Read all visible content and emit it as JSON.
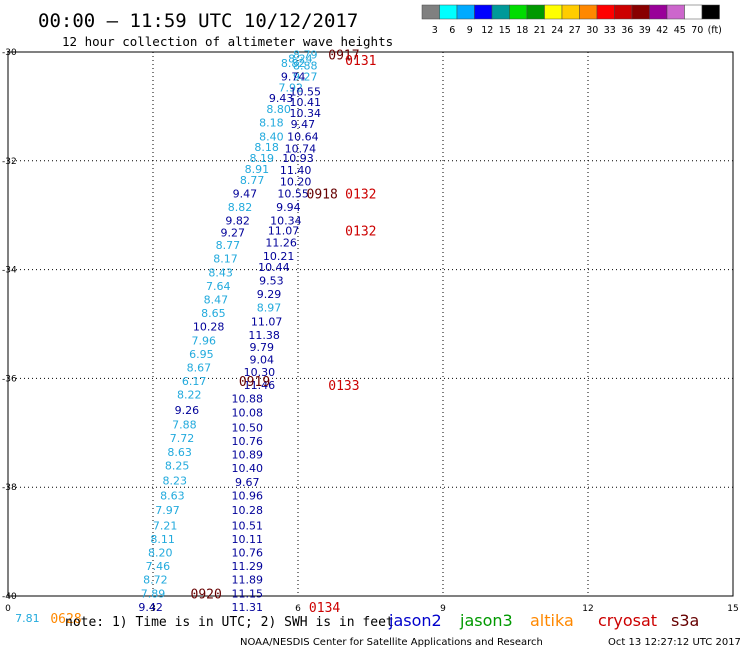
{
  "header": {
    "title": "00:00 – 11:59 UTC 10/12/2017",
    "subtitle": "12 hour collection of altimeter wave heights"
  },
  "scale_bar": {
    "colors": [
      "#808080",
      "#00ffff",
      "#00aaff",
      "#0000ff",
      "#009999",
      "#00dd00",
      "#009900",
      "#ffff00",
      "#ffcc00",
      "#ff8800",
      "#ff0000",
      "#cc0000",
      "#880000",
      "#990099",
      "#cc66cc",
      "#ffffff",
      "#000000"
    ],
    "labels": [
      "3",
      "6",
      "9",
      "12",
      "15",
      "18",
      "21",
      "24",
      "27",
      "30",
      "33",
      "36",
      "39",
      "42",
      "45",
      "70",
      "(ft)"
    ]
  },
  "footer": {
    "note": "note: 1) Time is in UTC; 2) SWH is in feet",
    "legend": [
      {
        "label": "jason2",
        "color": "#0000cc"
      },
      {
        "label": "jason3",
        "color": "#009900"
      },
      {
        "label": "altika",
        "color": "#ff8800"
      },
      {
        "label": "cryosat",
        "color": "#cc0000"
      },
      {
        "label": "s3a",
        "color": "#660000"
      }
    ],
    "credit": "NOAA/NESDIS Center for Satellite Applications and Research",
    "timestamp": "Oct 13 12:27:12 UTC 2017"
  },
  "chart_data": {
    "type": "scatter",
    "xlim": [
      0,
      15
    ],
    "ylim": [
      -40,
      -30
    ],
    "x_ticks": [
      "0",
      "3",
      "6",
      "9",
      "12",
      "15"
    ],
    "y_ticks": [
      "-30",
      "-32",
      "-34",
      "-36",
      "-38",
      "-40"
    ],
    "grid": true,
    "labels": [
      {
        "x": 6.15,
        "y": -30.05,
        "text": "8.79",
        "color": "#22aadd"
      },
      {
        "x": 6.05,
        "y": -30.12,
        "text": "8.24",
        "color": "#22aadd"
      },
      {
        "x": 5.9,
        "y": -30.2,
        "text": "8.82",
        "color": "#22aadd"
      },
      {
        "x": 6.15,
        "y": -30.25,
        "text": "8.88",
        "color": "#22aadd"
      },
      {
        "x": 6.15,
        "y": -30.45,
        "text": "9.27",
        "color": "#22aadd"
      },
      {
        "x": 5.9,
        "y": -30.45,
        "text": "9.74",
        "color": "#000099"
      },
      {
        "x": 5.85,
        "y": -30.65,
        "text": "7.92",
        "color": "#22aadd"
      },
      {
        "x": 6.15,
        "y": -30.73,
        "text": "10.55",
        "color": "#000099"
      },
      {
        "x": 5.65,
        "y": -30.85,
        "text": "9.43",
        "color": "#000099"
      },
      {
        "x": 6.15,
        "y": -30.92,
        "text": "10.41",
        "color": "#000099"
      },
      {
        "x": 5.6,
        "y": -31.05,
        "text": "8.80",
        "color": "#22aadd"
      },
      {
        "x": 6.15,
        "y": -31.12,
        "text": "10.34",
        "color": "#000099"
      },
      {
        "x": 5.45,
        "y": -31.3,
        "text": "8.18",
        "color": "#22aadd"
      },
      {
        "x": 6.1,
        "y": -31.32,
        "text": "9.47",
        "color": "#000099"
      },
      {
        "x": 5.45,
        "y": -31.55,
        "text": "8.40",
        "color": "#22aadd"
      },
      {
        "x": 6.1,
        "y": -31.55,
        "text": "10.64",
        "color": "#000099"
      },
      {
        "x": 5.35,
        "y": -31.75,
        "text": "8.18",
        "color": "#22aadd"
      },
      {
        "x": 6.05,
        "y": -31.77,
        "text": "10.74",
        "color": "#000099"
      },
      {
        "x": 5.25,
        "y": -31.95,
        "text": "8.19",
        "color": "#22aadd"
      },
      {
        "x": 6.0,
        "y": -31.95,
        "text": "10.93",
        "color": "#000099"
      },
      {
        "x": 5.15,
        "y": -32.15,
        "text": "8.91",
        "color": "#22aadd"
      },
      {
        "x": 5.95,
        "y": -32.17,
        "text": "11.40",
        "color": "#000099"
      },
      {
        "x": 5.05,
        "y": -32.35,
        "text": "8.77",
        "color": "#22aadd"
      },
      {
        "x": 5.95,
        "y": -32.38,
        "text": "10.20",
        "color": "#000099"
      },
      {
        "x": 4.9,
        "y": -32.6,
        "text": "9.47",
        "color": "#000099"
      },
      {
        "x": 5.9,
        "y": -32.6,
        "text": "10.55",
        "color": "#000099"
      },
      {
        "x": 4.8,
        "y": -32.85,
        "text": "8.82",
        "color": "#22aadd"
      },
      {
        "x": 5.8,
        "y": -32.85,
        "text": "9.94",
        "color": "#000099"
      },
      {
        "x": 4.75,
        "y": -33.1,
        "text": "9.82",
        "color": "#000099"
      },
      {
        "x": 5.75,
        "y": -33.1,
        "text": "10.34",
        "color": "#000099"
      },
      {
        "x": 4.65,
        "y": -33.32,
        "text": "9.27",
        "color": "#000099"
      },
      {
        "x": 5.7,
        "y": -33.28,
        "text": "11.07",
        "color": "#000099"
      },
      {
        "x": 4.55,
        "y": -33.55,
        "text": "8.77",
        "color": "#22aadd"
      },
      {
        "x": 5.65,
        "y": -33.5,
        "text": "11.26",
        "color": "#000099"
      },
      {
        "x": 4.5,
        "y": -33.8,
        "text": "8.17",
        "color": "#22aadd"
      },
      {
        "x": 5.6,
        "y": -33.75,
        "text": "10.21",
        "color": "#000099"
      },
      {
        "x": 4.4,
        "y": -34.05,
        "text": "8.43",
        "color": "#22aadd"
      },
      {
        "x": 5.5,
        "y": -33.95,
        "text": "10.44",
        "color": "#000099"
      },
      {
        "x": 4.35,
        "y": -34.3,
        "text": "7.64",
        "color": "#22aadd"
      },
      {
        "x": 5.45,
        "y": -34.2,
        "text": "9.53",
        "color": "#000099"
      },
      {
        "x": 4.3,
        "y": -34.55,
        "text": "8.47",
        "color": "#22aadd"
      },
      {
        "x": 5.4,
        "y": -34.45,
        "text": "9.29",
        "color": "#000099"
      },
      {
        "x": 4.25,
        "y": -34.8,
        "text": "8.65",
        "color": "#22aadd"
      },
      {
        "x": 5.4,
        "y": -34.7,
        "text": "8.97",
        "color": "#22aadd"
      },
      {
        "x": 4.15,
        "y": -35.05,
        "text": "10.28",
        "color": "#000099"
      },
      {
        "x": 5.35,
        "y": -34.95,
        "text": "11.07",
        "color": "#000099"
      },
      {
        "x": 4.05,
        "y": -35.3,
        "text": "7.96",
        "color": "#22aadd"
      },
      {
        "x": 5.3,
        "y": -35.2,
        "text": "11.38",
        "color": "#000099"
      },
      {
        "x": 4.0,
        "y": -35.55,
        "text": "6.95",
        "color": "#22aadd"
      },
      {
        "x": 5.25,
        "y": -35.42,
        "text": "9.79",
        "color": "#000099"
      },
      {
        "x": 3.95,
        "y": -35.8,
        "text": "8.67",
        "color": "#22aadd"
      },
      {
        "x": 5.25,
        "y": -35.65,
        "text": "9.04",
        "color": "#000099"
      },
      {
        "x": 3.85,
        "y": -36.05,
        "text": "6.17",
        "color": "#22aadd"
      },
      {
        "x": 5.2,
        "y": -35.88,
        "text": "10.30",
        "color": "#000099"
      },
      {
        "x": 5.2,
        "y": -36.12,
        "text": "11.46",
        "color": "#000099"
      },
      {
        "x": 3.75,
        "y": -36.3,
        "text": "8.22",
        "color": "#22aadd"
      },
      {
        "x": 4.95,
        "y": -36.37,
        "text": "10.88",
        "color": "#000099"
      },
      {
        "x": 3.7,
        "y": -36.58,
        "text": "9.26",
        "color": "#000099"
      },
      {
        "x": 4.95,
        "y": -36.63,
        "text": "10.08",
        "color": "#000099"
      },
      {
        "x": 3.65,
        "y": -36.85,
        "text": "7.88",
        "color": "#22aadd"
      },
      {
        "x": 4.95,
        "y": -36.9,
        "text": "10.50",
        "color": "#000099"
      },
      {
        "x": 3.6,
        "y": -37.1,
        "text": "7.72",
        "color": "#22aadd"
      },
      {
        "x": 4.95,
        "y": -37.15,
        "text": "10.76",
        "color": "#000099"
      },
      {
        "x": 3.55,
        "y": -37.35,
        "text": "8.63",
        "color": "#22aadd"
      },
      {
        "x": 4.95,
        "y": -37.4,
        "text": "10.89",
        "color": "#000099"
      },
      {
        "x": 3.5,
        "y": -37.6,
        "text": "8.25",
        "color": "#22aadd"
      },
      {
        "x": 4.95,
        "y": -37.65,
        "text": "10.40",
        "color": "#000099"
      },
      {
        "x": 3.45,
        "y": -37.88,
        "text": "8.23",
        "color": "#22aadd"
      },
      {
        "x": 4.95,
        "y": -37.9,
        "text": "9.67",
        "color": "#000099"
      },
      {
        "x": 3.4,
        "y": -38.15,
        "text": "8.63",
        "color": "#22aadd"
      },
      {
        "x": 4.95,
        "y": -38.15,
        "text": "10.96",
        "color": "#000099"
      },
      {
        "x": 3.3,
        "y": -38.42,
        "text": "7.97",
        "color": "#22aadd"
      },
      {
        "x": 4.95,
        "y": -38.42,
        "text": "10.28",
        "color": "#000099"
      },
      {
        "x": 3.25,
        "y": -38.7,
        "text": "7.21",
        "color": "#22aadd"
      },
      {
        "x": 4.95,
        "y": -38.7,
        "text": "10.51",
        "color": "#000099"
      },
      {
        "x": 3.2,
        "y": -38.95,
        "text": "8.11",
        "color": "#22aadd"
      },
      {
        "x": 4.95,
        "y": -38.95,
        "text": "10.11",
        "color": "#000099"
      },
      {
        "x": 3.15,
        "y": -39.2,
        "text": "8.20",
        "color": "#22aadd"
      },
      {
        "x": 4.95,
        "y": -39.2,
        "text": "10.76",
        "color": "#000099"
      },
      {
        "x": 3.1,
        "y": -39.45,
        "text": "7.46",
        "color": "#22aadd"
      },
      {
        "x": 4.95,
        "y": -39.45,
        "text": "11.29",
        "color": "#000099"
      },
      {
        "x": 3.05,
        "y": -39.7,
        "text": "8.72",
        "color": "#22aadd"
      },
      {
        "x": 4.95,
        "y": -39.7,
        "text": "11.89",
        "color": "#000099"
      },
      {
        "x": 3.0,
        "y": -39.95,
        "text": "7.89",
        "color": "#22aadd"
      },
      {
        "x": 4.95,
        "y": -39.95,
        "text": "11.15",
        "color": "#000099"
      },
      {
        "x": 2.95,
        "y": -40.2,
        "text": "9.42",
        "color": "#000099"
      },
      {
        "x": 4.95,
        "y": -40.2,
        "text": "11.31",
        "color": "#000099"
      },
      {
        "x": 0.4,
        "y": -40.4,
        "text": "7.81",
        "color": "#22aadd"
      }
    ],
    "time_stamps": [
      {
        "x": 6.95,
        "y": -30.05,
        "text": "0917",
        "color": "#660000"
      },
      {
        "x": 7.3,
        "y": -30.15,
        "text": "0131",
        "color": "#cc0000"
      },
      {
        "x": 6.5,
        "y": -32.6,
        "text": "0918",
        "color": "#660000"
      },
      {
        "x": 7.3,
        "y": -32.6,
        "text": "0132",
        "color": "#cc0000"
      },
      {
        "x": 7.3,
        "y": -33.28,
        "text": "0132",
        "color": "#cc0000"
      },
      {
        "x": 5.1,
        "y": -36.05,
        "text": "0919",
        "color": "#660000"
      },
      {
        "x": 6.95,
        "y": -36.12,
        "text": "0133",
        "color": "#cc0000"
      },
      {
        "x": 4.1,
        "y": -39.95,
        "text": "0920",
        "color": "#660000"
      },
      {
        "x": 6.55,
        "y": -40.2,
        "text": "0134",
        "color": "#cc0000"
      },
      {
        "x": 1.2,
        "y": -40.4,
        "text": "0628",
        "color": "#ff8800"
      }
    ]
  }
}
